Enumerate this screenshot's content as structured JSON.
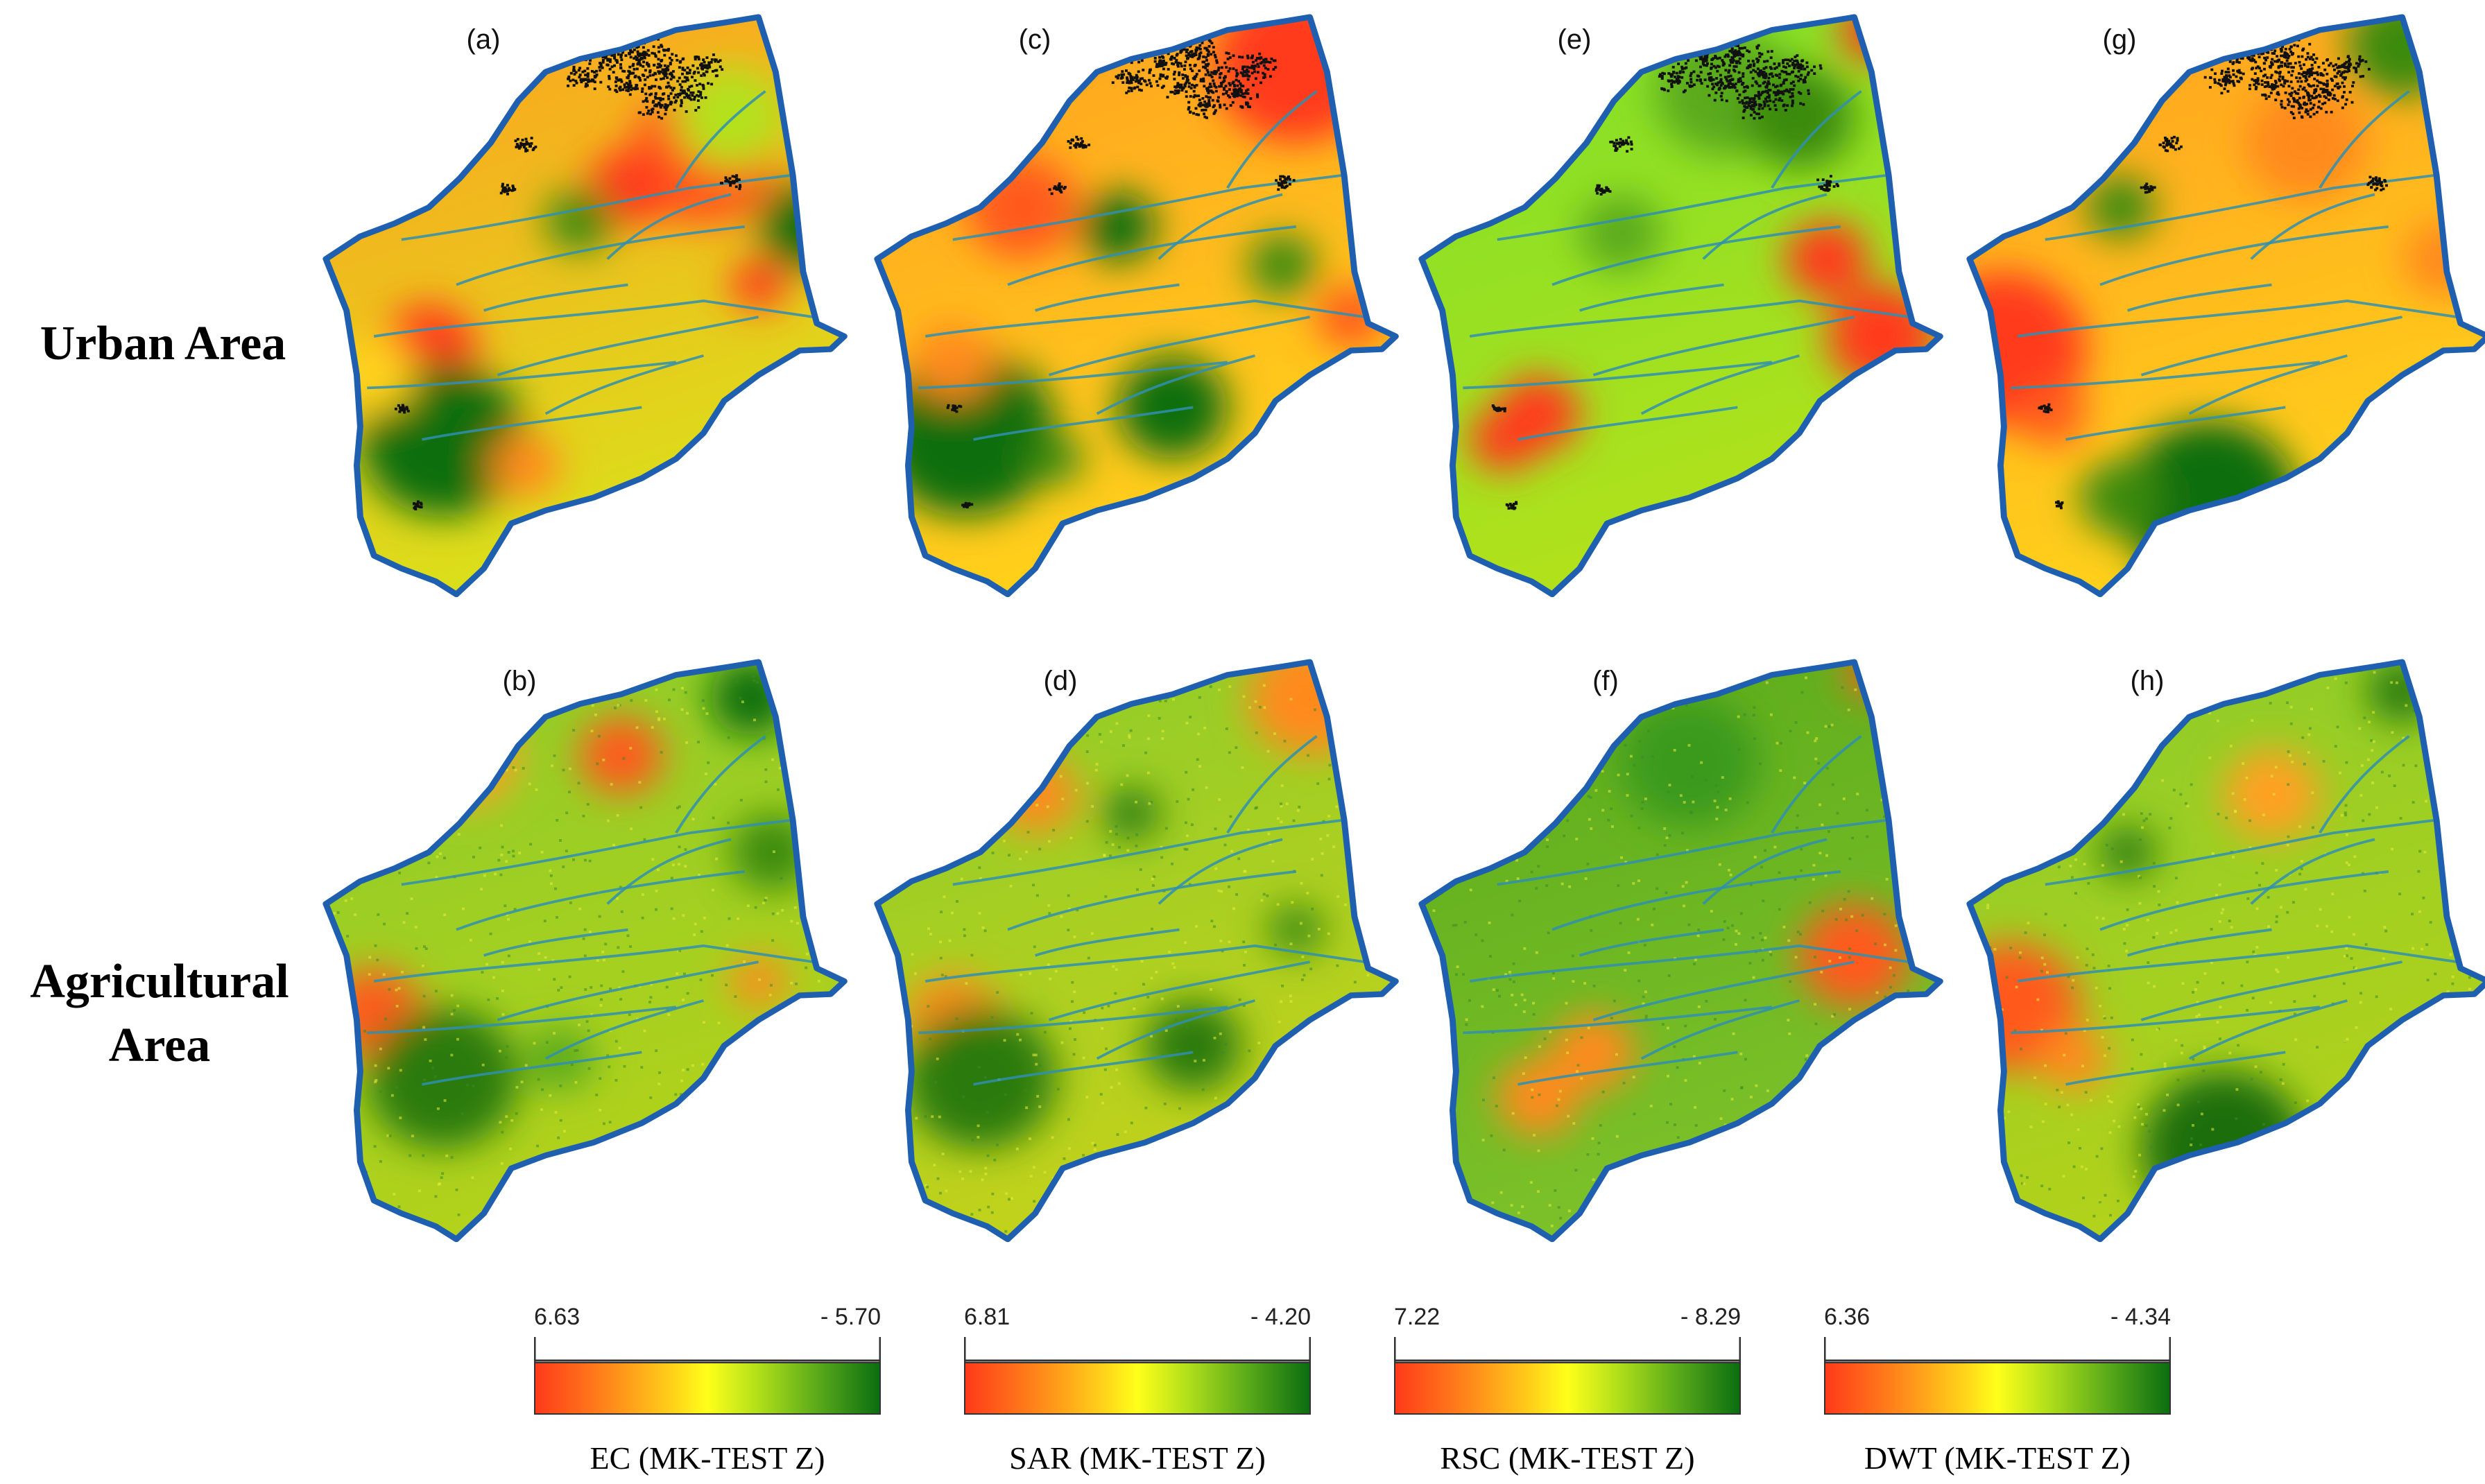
{
  "rows": [
    {
      "label_line1": "Urban Area",
      "label_line2": ""
    },
    {
      "label_line1": "Agricultural",
      "label_line2": "Area"
    }
  ],
  "panels": [
    {
      "label": "(a)",
      "scheme": "urban_ec"
    },
    {
      "label": "(c)",
      "scheme": "urban_sar"
    },
    {
      "label": "(e)",
      "scheme": "urban_rsc"
    },
    {
      "label": "(g)",
      "scheme": "urban_dwt"
    },
    {
      "label": "(b)",
      "scheme": "agri_ec"
    },
    {
      "label": "(d)",
      "scheme": "agri_sar"
    },
    {
      "label": "(f)",
      "scheme": "agri_rsc"
    },
    {
      "label": "(h)",
      "scheme": "agri_dwt"
    }
  ],
  "legends": [
    {
      "min": "6.63",
      "max": "- 5.70",
      "title": "EC (MK-TEST Z)"
    },
    {
      "min": "6.81",
      "max": "- 4.20",
      "title": "SAR (MK-TEST Z)"
    },
    {
      "min": "7.22",
      "max": "- 8.29",
      "title": "RSC (MK-TEST Z)"
    },
    {
      "min": "6.36",
      "max": "- 4.34",
      "title": "DWT (MK-TEST Z)"
    }
  ],
  "colors": {
    "boundary": "#1f5fb0",
    "streams": "#2f8fb0",
    "urban_built": "#111111",
    "high": "#ff3a1a",
    "mid": "#ffff1a",
    "low": "#0b6e10"
  }
}
